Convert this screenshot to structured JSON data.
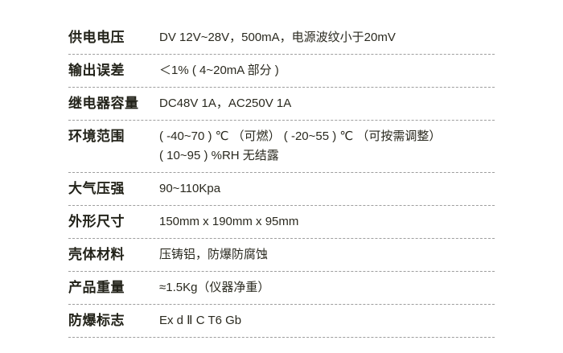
{
  "page": {
    "background_color": "#ffffff",
    "text_color": "#23231a",
    "divider_color": "#9e9e9e"
  },
  "spec_table": {
    "rows": [
      {
        "label": "供电电压",
        "value": "DV 12V~28V，500mA，电源波纹小于20mV"
      },
      {
        "label": "输出误差",
        "value": "＜1% ( 4~20mA 部分 )"
      },
      {
        "label": "继电器容量",
        "value": "DC48V 1A，AC250V 1A"
      },
      {
        "label": "环境范围",
        "value": "( -40~70 ) ℃ （可燃） ( -20~55 ) ℃ （可按需调整）\n( 10~95 ) %RH 无结露"
      },
      {
        "label": "大气压强",
        "value": "90~110Kpa"
      },
      {
        "label": "外形尺寸",
        "value": "150mm x 190mm x 95mm"
      },
      {
        "label": "壳体材料",
        "value": "压铸铝，防爆防腐蚀"
      },
      {
        "label": "产品重量",
        "value": "≈1.5Kg（仪器净重）"
      },
      {
        "label": "防爆标志",
        "value": "Ex d Ⅱ C T6 Gb"
      }
    ]
  }
}
